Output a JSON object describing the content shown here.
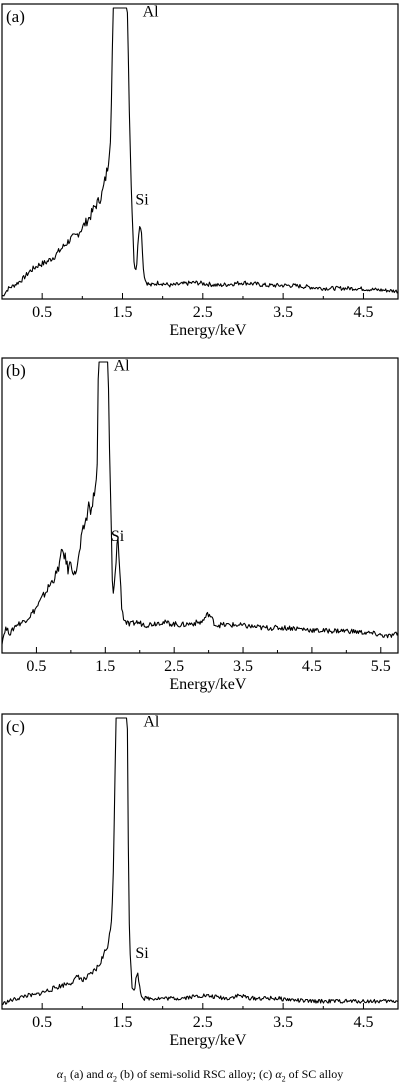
{
  "chart_data": [
    {
      "type": "line",
      "panel_label": "(a)",
      "xlabel": "Energy/keV",
      "xlim": [
        0.0,
        4.93
      ],
      "ylim": [
        0,
        100
      ],
      "x_ticks": [
        "0.5",
        "1.5",
        "2.5",
        "3.5",
        "4.5"
      ],
      "x_tick_values": [
        0.5,
        1.5,
        2.5,
        3.5,
        4.5
      ],
      "peak_labels": [
        {
          "text": "Al",
          "x": 1.75,
          "y": 97
        },
        {
          "text": "Si",
          "x": 1.66,
          "y": 32
        }
      ],
      "series": [
        {
          "x": [
            0.0,
            0.08,
            0.15,
            0.25,
            0.35,
            0.45,
            0.55,
            0.65,
            0.75,
            0.85,
            0.92,
            1.0,
            1.05,
            1.1,
            1.15,
            1.2,
            1.25,
            1.28,
            1.31,
            1.33,
            1.35,
            1.37,
            1.38,
            1.56,
            1.58,
            1.6,
            1.62,
            1.64,
            1.66,
            1.68,
            1.7,
            1.72,
            1.74,
            1.76,
            1.78,
            1.8,
            1.85,
            1.95,
            2.1,
            2.4,
            2.7,
            3.0,
            3.3,
            3.6,
            4.0,
            4.4,
            4.93
          ],
          "y": [
            0,
            3,
            4,
            6,
            9,
            11,
            12,
            14,
            17,
            20,
            21,
            24,
            26,
            28,
            31,
            33,
            36,
            40,
            44,
            49,
            56,
            75,
            100,
            100,
            72,
            48,
            30,
            14,
            9,
            12,
            22,
            27,
            21,
            10,
            6,
            5,
            4,
            5,
            4,
            5,
            4,
            5,
            4,
            4,
            3,
            3,
            2
          ]
        }
      ]
    },
    {
      "type": "line",
      "panel_label": "(b)",
      "xlabel": "Energy/keV",
      "xlim": [
        0.0,
        5.75
      ],
      "ylim": [
        0,
        100
      ],
      "x_ticks": [
        "0.5",
        "1.5",
        "2.5",
        "3.5",
        "4.5",
        "5.5"
      ],
      "x_tick_values": [
        0.5,
        1.5,
        2.5,
        3.5,
        4.5,
        5.5
      ],
      "peak_labels": [
        {
          "text": "Al",
          "x": 1.62,
          "y": 97
        },
        {
          "text": "Si",
          "x": 1.58,
          "y": 38
        }
      ],
      "series": [
        {
          "x": [
            0.0,
            0.05,
            0.12,
            0.2,
            0.3,
            0.4,
            0.5,
            0.6,
            0.7,
            0.8,
            0.88,
            0.92,
            0.96,
            1.0,
            1.05,
            1.1,
            1.15,
            1.2,
            1.24,
            1.27,
            1.3,
            1.34,
            1.38,
            1.4,
            1.54,
            1.56,
            1.58,
            1.6,
            1.62,
            1.65,
            1.68,
            1.71,
            1.74,
            1.77,
            1.8,
            1.85,
            1.95,
            2.1,
            2.3,
            2.6,
            2.9,
            3.0,
            3.1,
            3.4,
            3.8,
            4.2,
            4.6,
            5.0,
            5.4,
            5.6,
            5.75
          ],
          "y": [
            3,
            8,
            6,
            9,
            10,
            12,
            15,
            19,
            23,
            27,
            35,
            32,
            28,
            31,
            26,
            30,
            38,
            44,
            47,
            52,
            48,
            55,
            60,
            100,
            100,
            70,
            50,
            25,
            18,
            30,
            40,
            28,
            15,
            11,
            10,
            9,
            10,
            9,
            10,
            9,
            10,
            13,
            9,
            9,
            8,
            8,
            7,
            7,
            6,
            5,
            6
          ]
        }
      ]
    },
    {
      "type": "line",
      "panel_label": "(c)",
      "xlabel": "Energy/keV",
      "xlim": [
        0.0,
        4.93
      ],
      "ylim": [
        0,
        100
      ],
      "x_ticks": [
        "0.5",
        "1.5",
        "2.5",
        "3.5",
        "4.5"
      ],
      "x_tick_values": [
        0.5,
        1.5,
        2.5,
        3.5,
        4.5
      ],
      "peak_labels": [
        {
          "text": "Al",
          "x": 1.76,
          "y": 97
        },
        {
          "text": "Si",
          "x": 1.66,
          "y": 17
        }
      ],
      "series": [
        {
          "x": [
            0.0,
            0.08,
            0.2,
            0.3,
            0.4,
            0.5,
            0.6,
            0.7,
            0.8,
            0.9,
            0.95,
            1.0,
            1.1,
            1.2,
            1.25,
            1.3,
            1.35,
            1.38,
            1.42,
            1.56,
            1.58,
            1.6,
            1.62,
            1.64,
            1.66,
            1.68,
            1.7,
            1.72,
            1.74,
            1.76,
            1.8,
            1.9,
            2.0,
            2.2,
            2.5,
            2.8,
            2.95,
            3.1,
            3.4,
            3.8,
            4.2,
            4.6,
            4.93
          ],
          "y": [
            1,
            2,
            3,
            4,
            4,
            5,
            6,
            7,
            8,
            9,
            11,
            9,
            11,
            14,
            17,
            20,
            26,
            40,
            100,
            100,
            35,
            15,
            7,
            5,
            8,
            12,
            10,
            6,
            4,
            3,
            3,
            3,
            3,
            3,
            4,
            3,
            4,
            3,
            3,
            2,
            2,
            2,
            2
          ]
        }
      ]
    }
  ],
  "caption": {
    "symbol": "α",
    "sub1": "1",
    "part1": " (a)  and ",
    "sub2": "2",
    "part2": " (b) of semi-solid RSC alloy; (c) ",
    "sub3": "2",
    "part3": " of SC alloy"
  }
}
